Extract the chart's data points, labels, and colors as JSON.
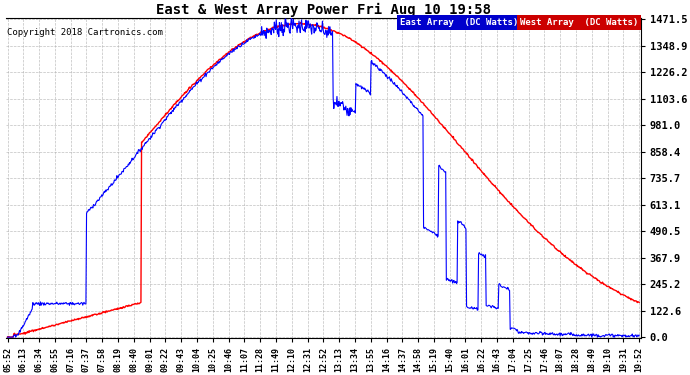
{
  "title": "East & West Array Power Fri Aug 10 19:58",
  "copyright": "Copyright 2018 Cartronics.com",
  "east_label": "East Array  (DC Watts)",
  "west_label": "West Array  (DC Watts)",
  "east_color": "#0000ff",
  "west_color": "#ff0000",
  "background_color": "#ffffff",
  "grid_color": "#b0b0b0",
  "ytick_labels": [
    "0.0",
    "122.6",
    "245.2",
    "367.9",
    "490.5",
    "613.1",
    "735.7",
    "858.4",
    "981.0",
    "1103.6",
    "1226.2",
    "1348.9",
    "1471.5"
  ],
  "ytick_values": [
    0.0,
    122.6,
    245.2,
    367.9,
    490.5,
    613.1,
    735.7,
    858.4,
    981.0,
    1103.6,
    1226.2,
    1348.9,
    1471.5
  ],
  "ymax": 1471.5,
  "ymin": 0.0,
  "figsize": [
    6.9,
    3.75
  ],
  "dpi": 100
}
